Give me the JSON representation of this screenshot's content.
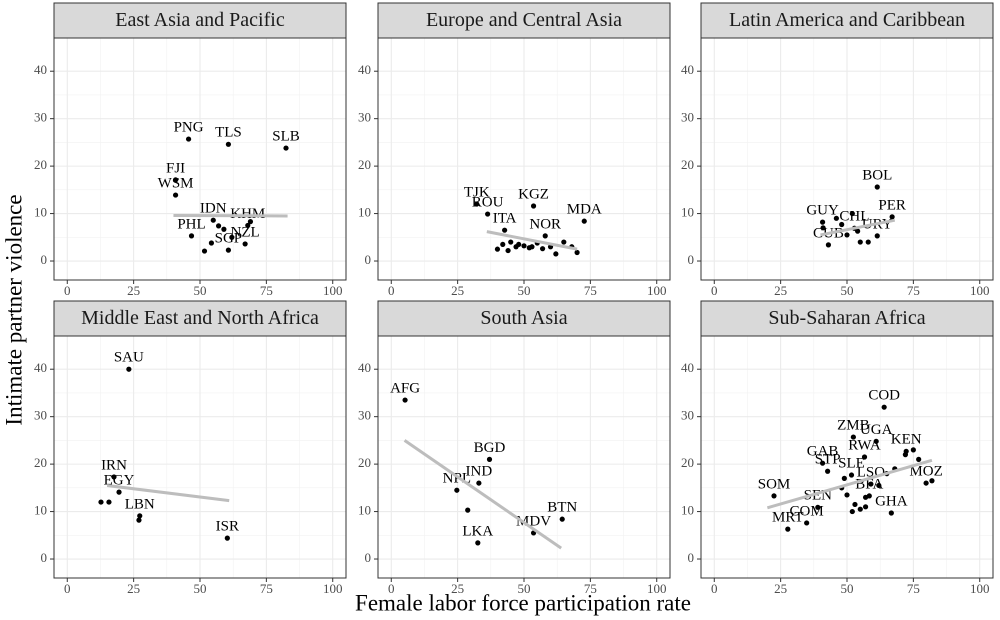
{
  "chart_data": {
    "type": "scatter",
    "xlabel": "Female labor force participation rate",
    "ylabel": "Intimate partner violence",
    "xlim": [
      -5,
      105
    ],
    "ylim": [
      -4,
      47
    ],
    "xticks": [
      0,
      25,
      50,
      75,
      100
    ],
    "yticks": [
      0,
      10,
      20,
      30,
      40
    ],
    "grid": true,
    "point_color": "#000000",
    "trend_color": "#bdbdbd",
    "panels": [
      {
        "title": "East Asia and Pacific",
        "x": [
          45.7,
          60.7,
          82.4,
          40.8,
          40.8,
          55,
          68,
          69,
          46.8,
          60.7,
          67,
          51.7,
          54.3,
          57,
          59,
          62
        ],
        "y": [
          25.7,
          24.6,
          23.8,
          17.1,
          13.9,
          8.6,
          7.5,
          8.3,
          5.3,
          2.3,
          3.6,
          2.1,
          3.8,
          7.4,
          6.7,
          5.0
        ],
        "labels": [
          "PNG",
          "TLS",
          "SLB",
          "FJI",
          "WSM",
          "IDN",
          "KHM",
          null,
          "PHL",
          "SGP",
          "NZL",
          null,
          null,
          null,
          null,
          null
        ],
        "trend": {
          "x": [
            40,
            83
          ],
          "y": [
            9.6,
            9.5
          ]
        }
      },
      {
        "title": "Europe and Central Asia",
        "x": [
          32.2,
          53.6,
          72.7,
          36.3,
          42.7,
          58,
          40,
          42,
          45,
          47,
          48,
          50,
          52,
          55,
          57,
          60,
          62,
          65,
          68,
          70,
          44,
          53
        ],
        "y": [
          12,
          11.6,
          8.4,
          9.9,
          6.5,
          5.3,
          2.5,
          3.5,
          4,
          3,
          3.5,
          3.2,
          2.8,
          3.8,
          2.6,
          3,
          1.5,
          4,
          3,
          1.8,
          2.2,
          3
        ],
        "labels": [
          "TJK",
          "KGZ",
          "MDA",
          "ROU",
          "ITA",
          "NOR",
          null,
          null,
          null,
          null,
          null,
          null,
          null,
          null,
          null,
          null,
          null,
          null,
          null,
          null,
          null,
          null
        ],
        "trend": {
          "x": [
            36,
            70
          ],
          "y": [
            6.2,
            2.5
          ]
        }
      },
      {
        "title": "Latin America and Caribbean",
        "x": [
          61.4,
          67,
          40.8,
          52.8,
          43,
          61.4,
          46,
          48,
          52,
          55,
          58,
          50,
          54,
          41
        ],
        "y": [
          15.6,
          9.3,
          8.2,
          6.9,
          3.4,
          5.3,
          9,
          7.7,
          10,
          4,
          4,
          5.5,
          6.3,
          7
        ],
        "labels": [
          "BOL",
          "PER",
          "GUY",
          "CHL",
          "CUB",
          "URY",
          null,
          null,
          null,
          null,
          null,
          null,
          null,
          null
        ],
        "trend": {
          "x": [
            40,
            68
          ],
          "y": [
            5.5,
            8.6
          ]
        }
      },
      {
        "title": "Middle East and North Africa",
        "x": [
          23.2,
          17.6,
          19.5,
          12.7,
          15.7,
          27.3,
          27,
          60.3
        ],
        "y": [
          40,
          17.3,
          14.1,
          12,
          12,
          9.1,
          8.2,
          4.4
        ],
        "labels": [
          "SAU",
          "IRN",
          "EGY",
          null,
          null,
          "LBN",
          null,
          "ISR"
        ],
        "trend": {
          "x": [
            15,
            61
          ],
          "y": [
            15.5,
            12.3
          ]
        }
      },
      {
        "title": "South Asia",
        "x": [
          5.2,
          37,
          33,
          24.7,
          28.8,
          32.6,
          53.6,
          64.4
        ],
        "y": [
          33.5,
          21,
          16,
          14.5,
          10.3,
          3.4,
          5.5,
          8.4
        ],
        "labels": [
          "AFG",
          "BGD",
          "IND",
          "NPL",
          null,
          "LKA",
          "MDV",
          "BTN"
        ],
        "trend": {
          "x": [
            5,
            64
          ],
          "y": [
            25,
            2.3
          ]
        }
      },
      {
        "title": "Sub-Saharan Africa",
        "x": [
          64,
          52.4,
          61,
          72.3,
          40.8,
          56.6,
          51.7,
          42.7,
          22.5,
          39,
          34.8,
          27.7,
          59,
          58.4,
          66.7,
          79.8,
          48,
          50,
          53,
          55,
          57,
          62,
          65,
          68,
          72,
          75,
          77,
          82,
          52,
          57,
          49
        ],
        "y": [
          32,
          25.7,
          24.8,
          22.7,
          20.2,
          21.5,
          17.7,
          18.5,
          13.3,
          10.9,
          7.6,
          6.3,
          15.8,
          13.3,
          9.7,
          16,
          15,
          13.5,
          11.5,
          10.5,
          13,
          15.5,
          18,
          19,
          22,
          23,
          21,
          16.5,
          10,
          11,
          17
        ],
        "labels": [
          "COD",
          "ZMB",
          "UGA",
          "KEN",
          "GAB",
          "RWA",
          "SLE",
          "STP",
          "SOM",
          "SEN",
          "COM",
          "MRT",
          "LSO",
          "BFA",
          "GHA",
          "MOZ",
          null,
          null,
          null,
          null,
          null,
          null,
          null,
          null,
          null,
          null,
          null,
          null,
          null,
          null,
          null
        ],
        "trend": {
          "x": [
            20,
            82
          ],
          "y": [
            10.8,
            20.8
          ]
        }
      }
    ]
  }
}
